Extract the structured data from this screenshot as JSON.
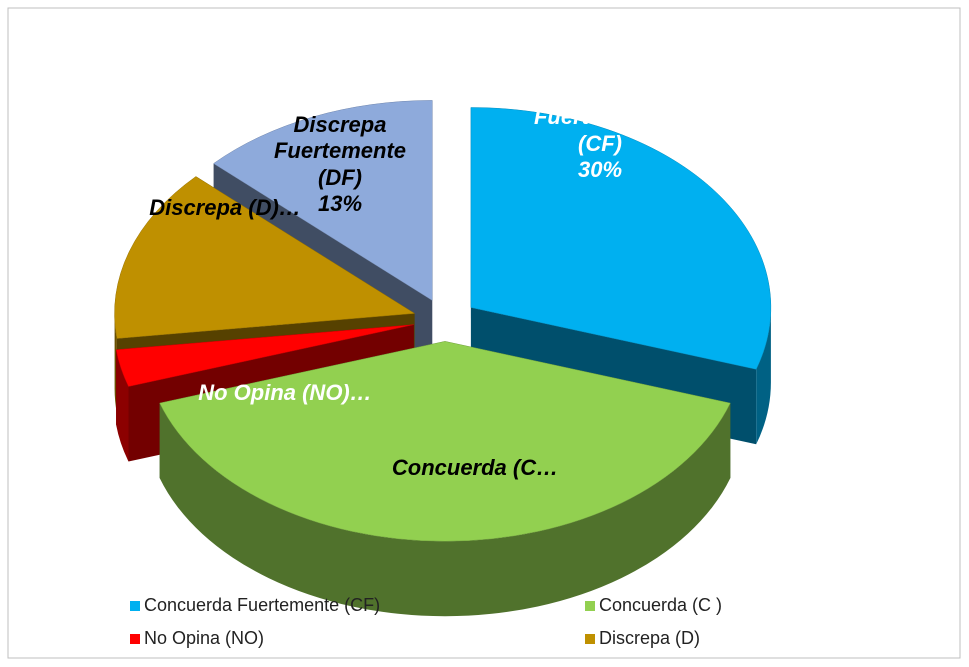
{
  "chart_data": {
    "type": "pie3d",
    "categories": [
      "Concuerda Fuertemente (CF)",
      "Concuerda (C )",
      "No Opina (NO)",
      "Discrepa (D)",
      "Discrepa Fuertemente (DF)"
    ],
    "values": [
      30,
      40,
      3,
      14,
      13
    ],
    "value_labels": [
      "30%",
      null,
      null,
      null,
      "13%"
    ],
    "slice_labels": [
      "Concuerda Fuertemente (CF)",
      "Concuerda (C…",
      "No Opina (NO)…",
      "Discrepa (D)…",
      "Discrepa Fuertemente (DF)"
    ],
    "colors": [
      "#00b0f0",
      "#92d050",
      "#ff0000",
      "#bf9000",
      "#8eaadb"
    ],
    "legend": "bottom"
  }
}
